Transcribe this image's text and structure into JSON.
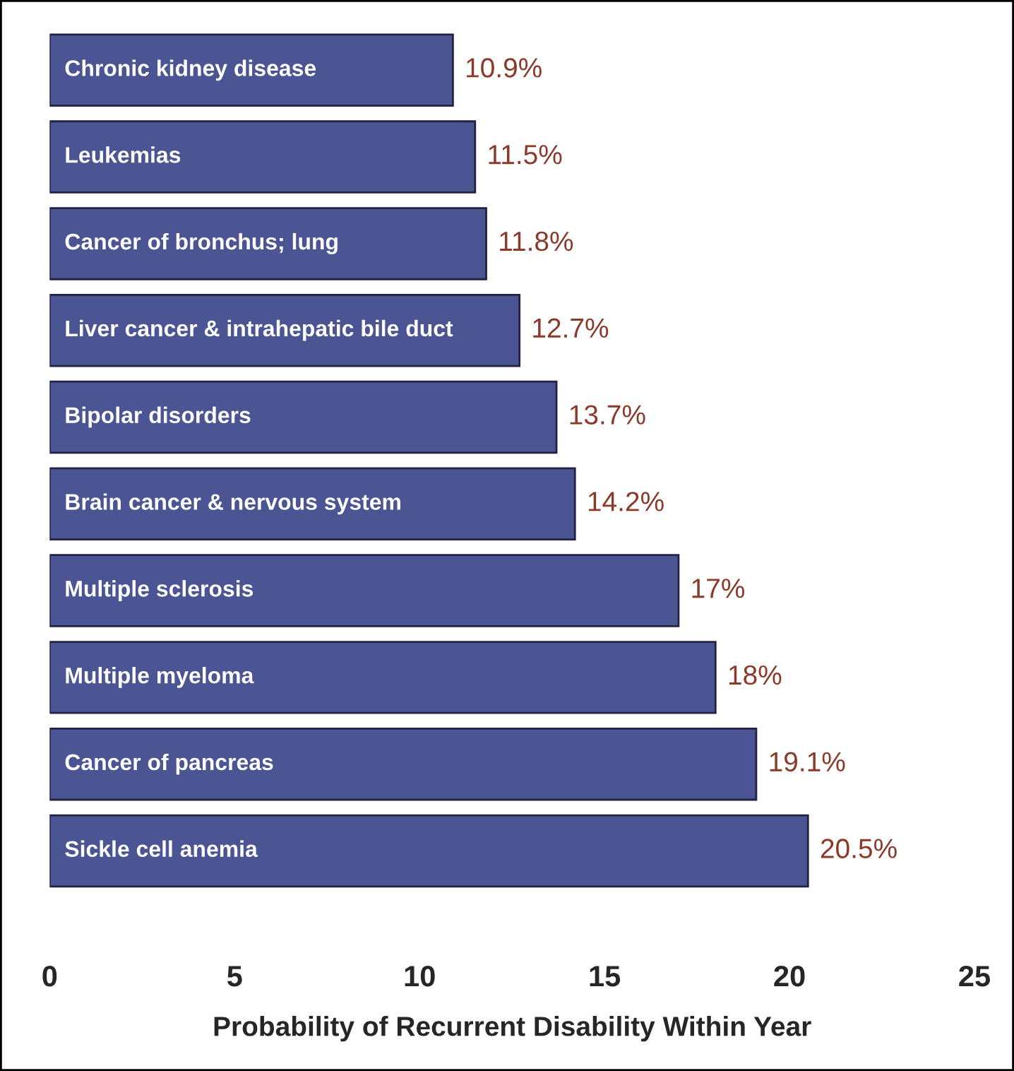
{
  "chart_data": {
    "type": "bar",
    "orientation": "horizontal",
    "xlabel": "Probability of Recurrent Disability Within Year",
    "categories": [
      "Chronic kidney disease",
      "Leukemias",
      "Cancer of bronchus; lung",
      "Liver cancer & intrahepatic bile duct",
      "Bipolar disorders",
      "Brain cancer & nervous system",
      "Multiple sclerosis",
      "Multiple myeloma",
      "Cancer of pancreas",
      "Sickle cell anemia"
    ],
    "values": [
      10.9,
      11.5,
      11.8,
      12.7,
      13.7,
      14.2,
      17,
      18,
      19.1,
      20.5
    ],
    "value_labels": [
      "10.9%",
      "11.5%",
      "11.8%",
      "12.7%",
      "13.7%",
      "14.2%",
      "17%",
      "18%",
      "19.1%",
      "20.5%"
    ],
    "color": "#4b5593",
    "xlim": [
      0,
      25
    ],
    "xticks": [
      0,
      5,
      10,
      15,
      20,
      25
    ],
    "grid": false,
    "legend": false
  }
}
